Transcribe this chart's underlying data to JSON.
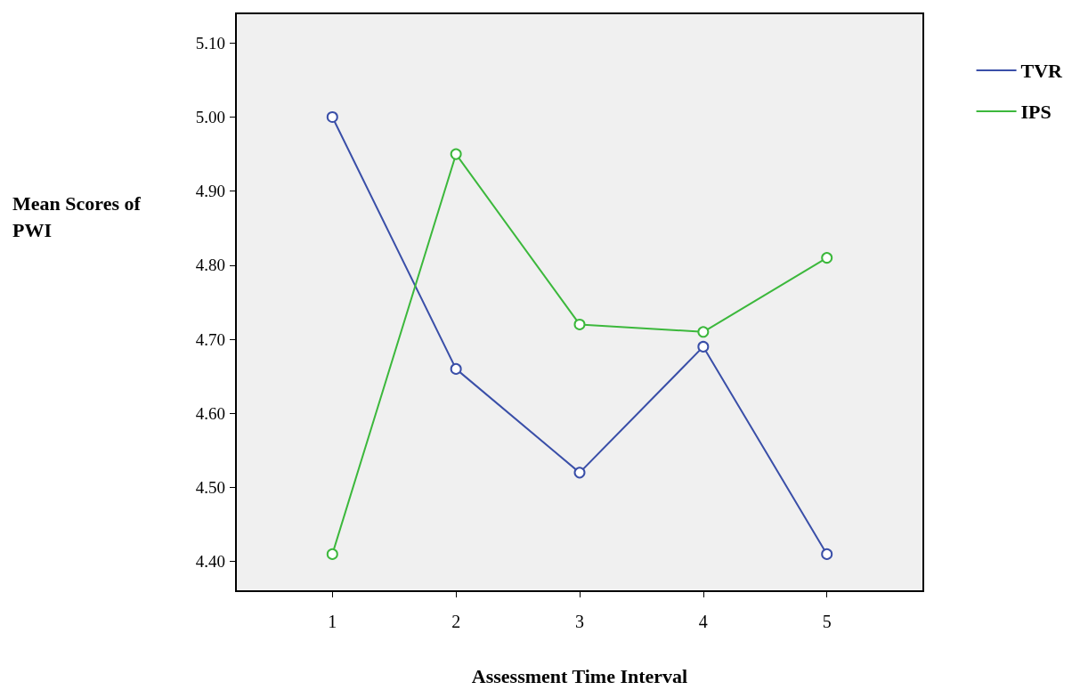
{
  "chart_data": {
    "type": "line",
    "xlabel": "Assessment Time Interval",
    "ylabel": "Mean Scores of PWI",
    "x": [
      1,
      2,
      3,
      4,
      5
    ],
    "xlim": [
      0.22,
      5.78
    ],
    "xticks": [
      1,
      2,
      3,
      4,
      5
    ],
    "ylim": [
      4.36,
      5.14
    ],
    "yticks": [
      {
        "value": 4.4,
        "label": "4.40"
      },
      {
        "value": 4.5,
        "label": "4.50"
      },
      {
        "value": 4.6,
        "label": "4.60"
      },
      {
        "value": 4.7,
        "label": "4.70"
      },
      {
        "value": 4.8,
        "label": "4.80"
      },
      {
        "value": 4.9,
        "label": "4.90"
      },
      {
        "value": 5.0,
        "label": "5.00"
      },
      {
        "value": 5.1,
        "label": "5.10"
      }
    ],
    "series": [
      {
        "name": "TVR",
        "color": "#3a4fa8",
        "values": [
          5.0,
          4.66,
          4.52,
          4.69,
          4.41
        ]
      },
      {
        "name": "IPS",
        "color": "#3cb83c",
        "values": [
          4.41,
          4.95,
          4.72,
          4.71,
          4.81
        ]
      }
    ],
    "marker": "circle",
    "line_style": "solid",
    "grid": false,
    "legend": "top right"
  }
}
